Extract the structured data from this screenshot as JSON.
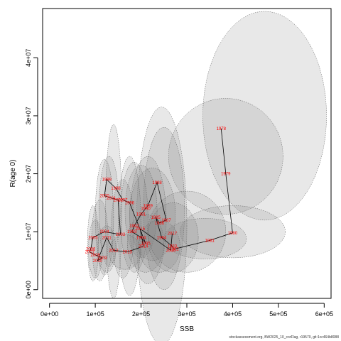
{
  "chart_data": {
    "type": "scatter",
    "xlabel": "SSB",
    "ylabel": "R(age 0)",
    "xlim": [
      -15000,
      615000
    ],
    "ylim": [
      -1500000,
      48500000
    ],
    "xticks": [
      0,
      100000,
      200000,
      300000,
      400000,
      500000,
      600000
    ],
    "xtick_labels": [
      "0e+00",
      "1e+05",
      "2e+05",
      "3e+05",
      "4e+05",
      "5e+05",
      "6e+05"
    ],
    "yticks": [
      0,
      10000000,
      20000000,
      30000000,
      40000000
    ],
    "ytick_labels": [
      "0e+00",
      "1e+07",
      "2e+07",
      "3e+07",
      "4e+07"
    ],
    "colors": {
      "points": "#ff0000",
      "line": "#000000",
      "ellipse_fill": "#7f7f7f",
      "ellipse_stroke": "#555555"
    },
    "points": [
      {
        "label": "1978",
        "x": 375000,
        "y": 27800000
      },
      {
        "label": "1979",
        "x": 385000,
        "y": 20000000
      },
      {
        "label": "1980",
        "x": 400000,
        "y": 9800000
      },
      {
        "label": "1981",
        "x": 350000,
        "y": 8500000
      },
      {
        "label": "1982",
        "x": 272000,
        "y": 7000000
      },
      {
        "label": "1983",
        "x": 268000,
        "y": 7500000
      },
      {
        "label": "1984",
        "x": 245000,
        "y": 9000000
      },
      {
        "label": "1985",
        "x": 232000,
        "y": 12500000
      },
      {
        "label": "1986",
        "x": 240000,
        "y": 11500000
      },
      {
        "label": "1987",
        "x": 255000,
        "y": 12000000
      },
      {
        "label": "1988",
        "x": 235000,
        "y": 18500000
      },
      {
        "label": "1989",
        "x": 215000,
        "y": 14500000
      },
      {
        "label": "1990",
        "x": 210000,
        "y": 14000000
      },
      {
        "label": "1991",
        "x": 200000,
        "y": 13000000
      },
      {
        "label": "1992",
        "x": 185000,
        "y": 11000000
      },
      {
        "label": "1993",
        "x": 180000,
        "y": 10000000
      },
      {
        "label": "1994",
        "x": 200000,
        "y": 9000000
      },
      {
        "label": "1995",
        "x": 210000,
        "y": 8000000
      },
      {
        "label": "1996",
        "x": 175000,
        "y": 15000000
      },
      {
        "label": "1997",
        "x": 160000,
        "y": 15500000
      },
      {
        "label": "1998",
        "x": 145000,
        "y": 17500000
      },
      {
        "label": "1999",
        "x": 125000,
        "y": 19000000
      },
      {
        "label": "2000",
        "x": 120000,
        "y": 16200000
      },
      {
        "label": "2001",
        "x": 135000,
        "y": 15800000
      },
      {
        "label": "2002",
        "x": 150000,
        "y": 15500000
      },
      {
        "label": "2003",
        "x": 155000,
        "y": 9500000
      },
      {
        "label": "2004",
        "x": 120000,
        "y": 10000000
      },
      {
        "label": "2005",
        "x": 95000,
        "y": 9000000
      },
      {
        "label": "2006",
        "x": 90000,
        "y": 7000000
      },
      {
        "label": "2007",
        "x": 88000,
        "y": 6500000
      },
      {
        "label": "2008",
        "x": 100000,
        "y": 6000000
      },
      {
        "label": "2009",
        "x": 115000,
        "y": 5500000
      },
      {
        "label": "2010",
        "x": 105000,
        "y": 5000000
      },
      {
        "label": "2011",
        "x": 125000,
        "y": 9000000
      },
      {
        "label": "2012",
        "x": 140000,
        "y": 6800000
      },
      {
        "label": "2013",
        "x": 170000,
        "y": 6500000
      },
      {
        "label": "2014",
        "x": 205000,
        "y": 7500000
      },
      {
        "label": "2015",
        "x": 198000,
        "y": 10500000
      },
      {
        "label": "2016",
        "x": 265000,
        "y": 6800000
      },
      {
        "label": "2017",
        "x": 268000,
        "y": 9700000
      }
    ],
    "ellipses": [
      {
        "cx": 470000,
        "cy": 30000000,
        "rx": 135000,
        "ry": 18000000
      },
      {
        "cx": 385000,
        "cy": 23000000,
        "rx": 125000,
        "ry": 10000000
      },
      {
        "cx": 400000,
        "cy": 10000000,
        "rx": 115000,
        "ry": 4500000
      },
      {
        "cx": 340000,
        "cy": 8800000,
        "rx": 90000,
        "ry": 3500000
      },
      {
        "cx": 245000,
        "cy": 11000000,
        "rx": 55000,
        "ry": 20500000
      },
      {
        "cx": 250000,
        "cy": 14000000,
        "rx": 45000,
        "ry": 14000000
      },
      {
        "cx": 225000,
        "cy": 13000000,
        "rx": 50000,
        "ry": 8000000
      },
      {
        "cx": 215000,
        "cy": 12000000,
        "rx": 40000,
        "ry": 11000000
      },
      {
        "cx": 200000,
        "cy": 13500000,
        "rx": 35000,
        "ry": 8000000
      },
      {
        "cx": 185000,
        "cy": 12500000,
        "rx": 30000,
        "ry": 9500000
      },
      {
        "cx": 175000,
        "cy": 11000000,
        "rx": 25000,
        "ry": 12000000
      },
      {
        "cx": 160000,
        "cy": 10500000,
        "rx": 25000,
        "ry": 8500000
      },
      {
        "cx": 140000,
        "cy": 13500000,
        "rx": 18000,
        "ry": 15000000
      },
      {
        "cx": 130000,
        "cy": 13500000,
        "rx": 22000,
        "ry": 9500000
      },
      {
        "cx": 120000,
        "cy": 12500000,
        "rx": 20000,
        "ry": 10000000
      },
      {
        "cx": 110000,
        "cy": 8500000,
        "rx": 18000,
        "ry": 7000000
      },
      {
        "cx": 100000,
        "cy": 7000000,
        "rx": 15000,
        "ry": 5000000
      },
      {
        "cx": 95000,
        "cy": 8000000,
        "rx": 12000,
        "ry": 6500000
      },
      {
        "cx": 125000,
        "cy": 7000000,
        "rx": 20000,
        "ry": 4000000
      },
      {
        "cx": 165000,
        "cy": 6500000,
        "rx": 35000,
        "ry": 3000000
      },
      {
        "cx": 210000,
        "cy": 8000000,
        "rx": 40000,
        "ry": 5000000
      },
      {
        "cx": 240000,
        "cy": 7500000,
        "rx": 45000,
        "ry": 4500000
      },
      {
        "cx": 270000,
        "cy": 9000000,
        "rx": 55000,
        "ry": 6000000
      },
      {
        "cx": 300000,
        "cy": 10000000,
        "rx": 85000,
        "ry": 7000000
      }
    ]
  },
  "footer": "stockassessment.org, BW2025_10_corFlag, r19570, git:1cc464b8088"
}
